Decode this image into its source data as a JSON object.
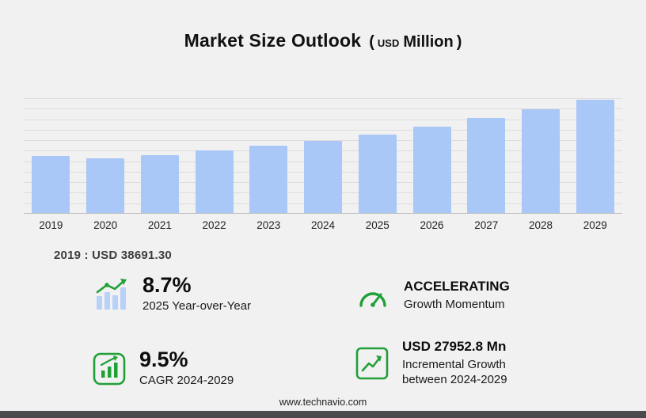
{
  "colors": {
    "accent_green": "#21a038",
    "bar_blue": "#a9c7f7",
    "icon_bar_blue": "#b7d1f8",
    "footer_bar": "#4b4b4d"
  },
  "title": {
    "main": "Market Size Outlook",
    "unit_open": "(",
    "unit_currency": "USD",
    "unit_label": "Million",
    "unit_close": ")"
  },
  "chart_data": {
    "type": "bar",
    "title": "Market Size Outlook (USD Million)",
    "categories": [
      "2019",
      "2020",
      "2021",
      "2022",
      "2023",
      "2024",
      "2025",
      "2026",
      "2027",
      "2028",
      "2029"
    ],
    "values": [
      38691.3,
      36950,
      38900,
      42300,
      45600,
      48680,
      52915,
      58100,
      63900,
      70100,
      76630
    ],
    "xlabel": "",
    "ylabel": "",
    "ylim": [
      0,
      78000
    ],
    "grid": true,
    "legend": false,
    "bar_color": "#a9c7f7",
    "labeled_point": {
      "category": "2019",
      "label": "2019 : USD  38691.30"
    }
  },
  "annotation": {
    "base_year_label": "2019 : USD  38691.30"
  },
  "stats": [
    {
      "value": "8.7%",
      "label": "2025 Year-over-Year",
      "icon": "bar-chart-trend-icon"
    },
    {
      "value": "ACCELERATING",
      "label": "Growth Momentum",
      "icon": "speedometer-icon"
    },
    {
      "value": "9.5%",
      "label": "CAGR 2024-2029",
      "icon": "cagr-box-icon"
    },
    {
      "value": "USD 27952.8 Mn",
      "label": "Incremental Growth between 2024-2029",
      "icon": "growth-arrow-icon"
    }
  ],
  "footer": {
    "url": "www.technavio.com"
  }
}
